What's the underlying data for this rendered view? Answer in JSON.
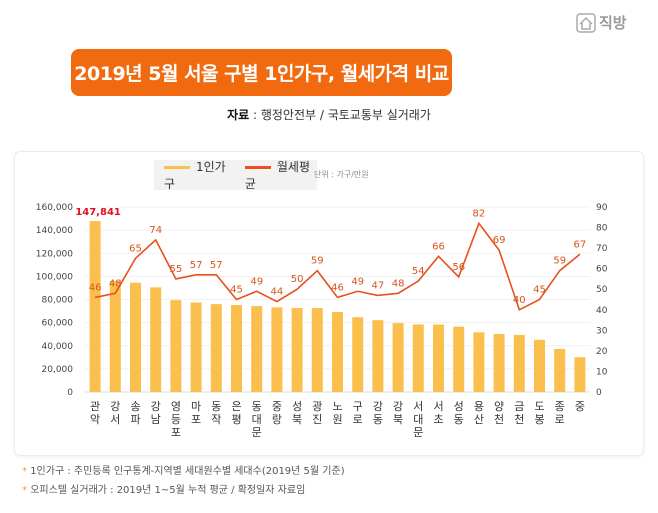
{
  "brand": {
    "name": "직방",
    "icon": "house-icon"
  },
  "title": "2019년 5월 서울 구별 1인가구, 월세가격 비교",
  "source": {
    "label": "자료",
    "text": " : 행정안전부 / 국토교통부 실거래가"
  },
  "unit": "단위 : 가구/만원",
  "notes": [
    "1인가구 : 주민등록 인구통계-지역별 세대원수별 세대수(2019년 5월 기준)",
    "오피스텔 실거래가 : 2019년 1~5월 누적 평균 / 확정일자 자료임"
  ],
  "chart_data": {
    "type": "bar+line",
    "categories": [
      "관악",
      "강서",
      "송파",
      "강남",
      "영등포",
      "마포",
      "동작",
      "은평",
      "동대문",
      "중랑",
      "성북",
      "광진",
      "노원",
      "구로",
      "강동",
      "강북",
      "서대문",
      "서초",
      "성동",
      "용산",
      "양천",
      "금천",
      "도봉",
      "종로",
      "중"
    ],
    "series": [
      {
        "name": "1인가구",
        "type": "bar",
        "axis": "left",
        "color": "#fbbf4e",
        "values": [
          147841,
          96000,
          94500,
          90500,
          79400,
          77400,
          76000,
          75200,
          74300,
          73200,
          72600,
          72600,
          69200,
          64700,
          62100,
          59600,
          58400,
          58400,
          56500,
          51600,
          50200,
          49400,
          45100,
          37200,
          30100
        ],
        "highlight_label": "147,841"
      },
      {
        "name": "월세평균",
        "type": "line",
        "axis": "right",
        "color": "#e8501e",
        "values": [
          46,
          48,
          65,
          74,
          55,
          57,
          57,
          45,
          49,
          44,
          50,
          59,
          46,
          49,
          47,
          48,
          54,
          66,
          56,
          82,
          69,
          40,
          45,
          59,
          67
        ]
      }
    ],
    "left_axis": {
      "ylim": [
        0,
        160000
      ],
      "ticks": [
        "0",
        "20,000",
        "40,000",
        "60,000",
        "80,000",
        "100,000",
        "120,000",
        "140,000",
        "160,000"
      ]
    },
    "right_axis": {
      "ylim": [
        0,
        90
      ],
      "ticks": [
        "0",
        "10",
        "20",
        "30",
        "40",
        "50",
        "60",
        "70",
        "80",
        "90"
      ]
    },
    "grid": true,
    "legend": "top"
  }
}
